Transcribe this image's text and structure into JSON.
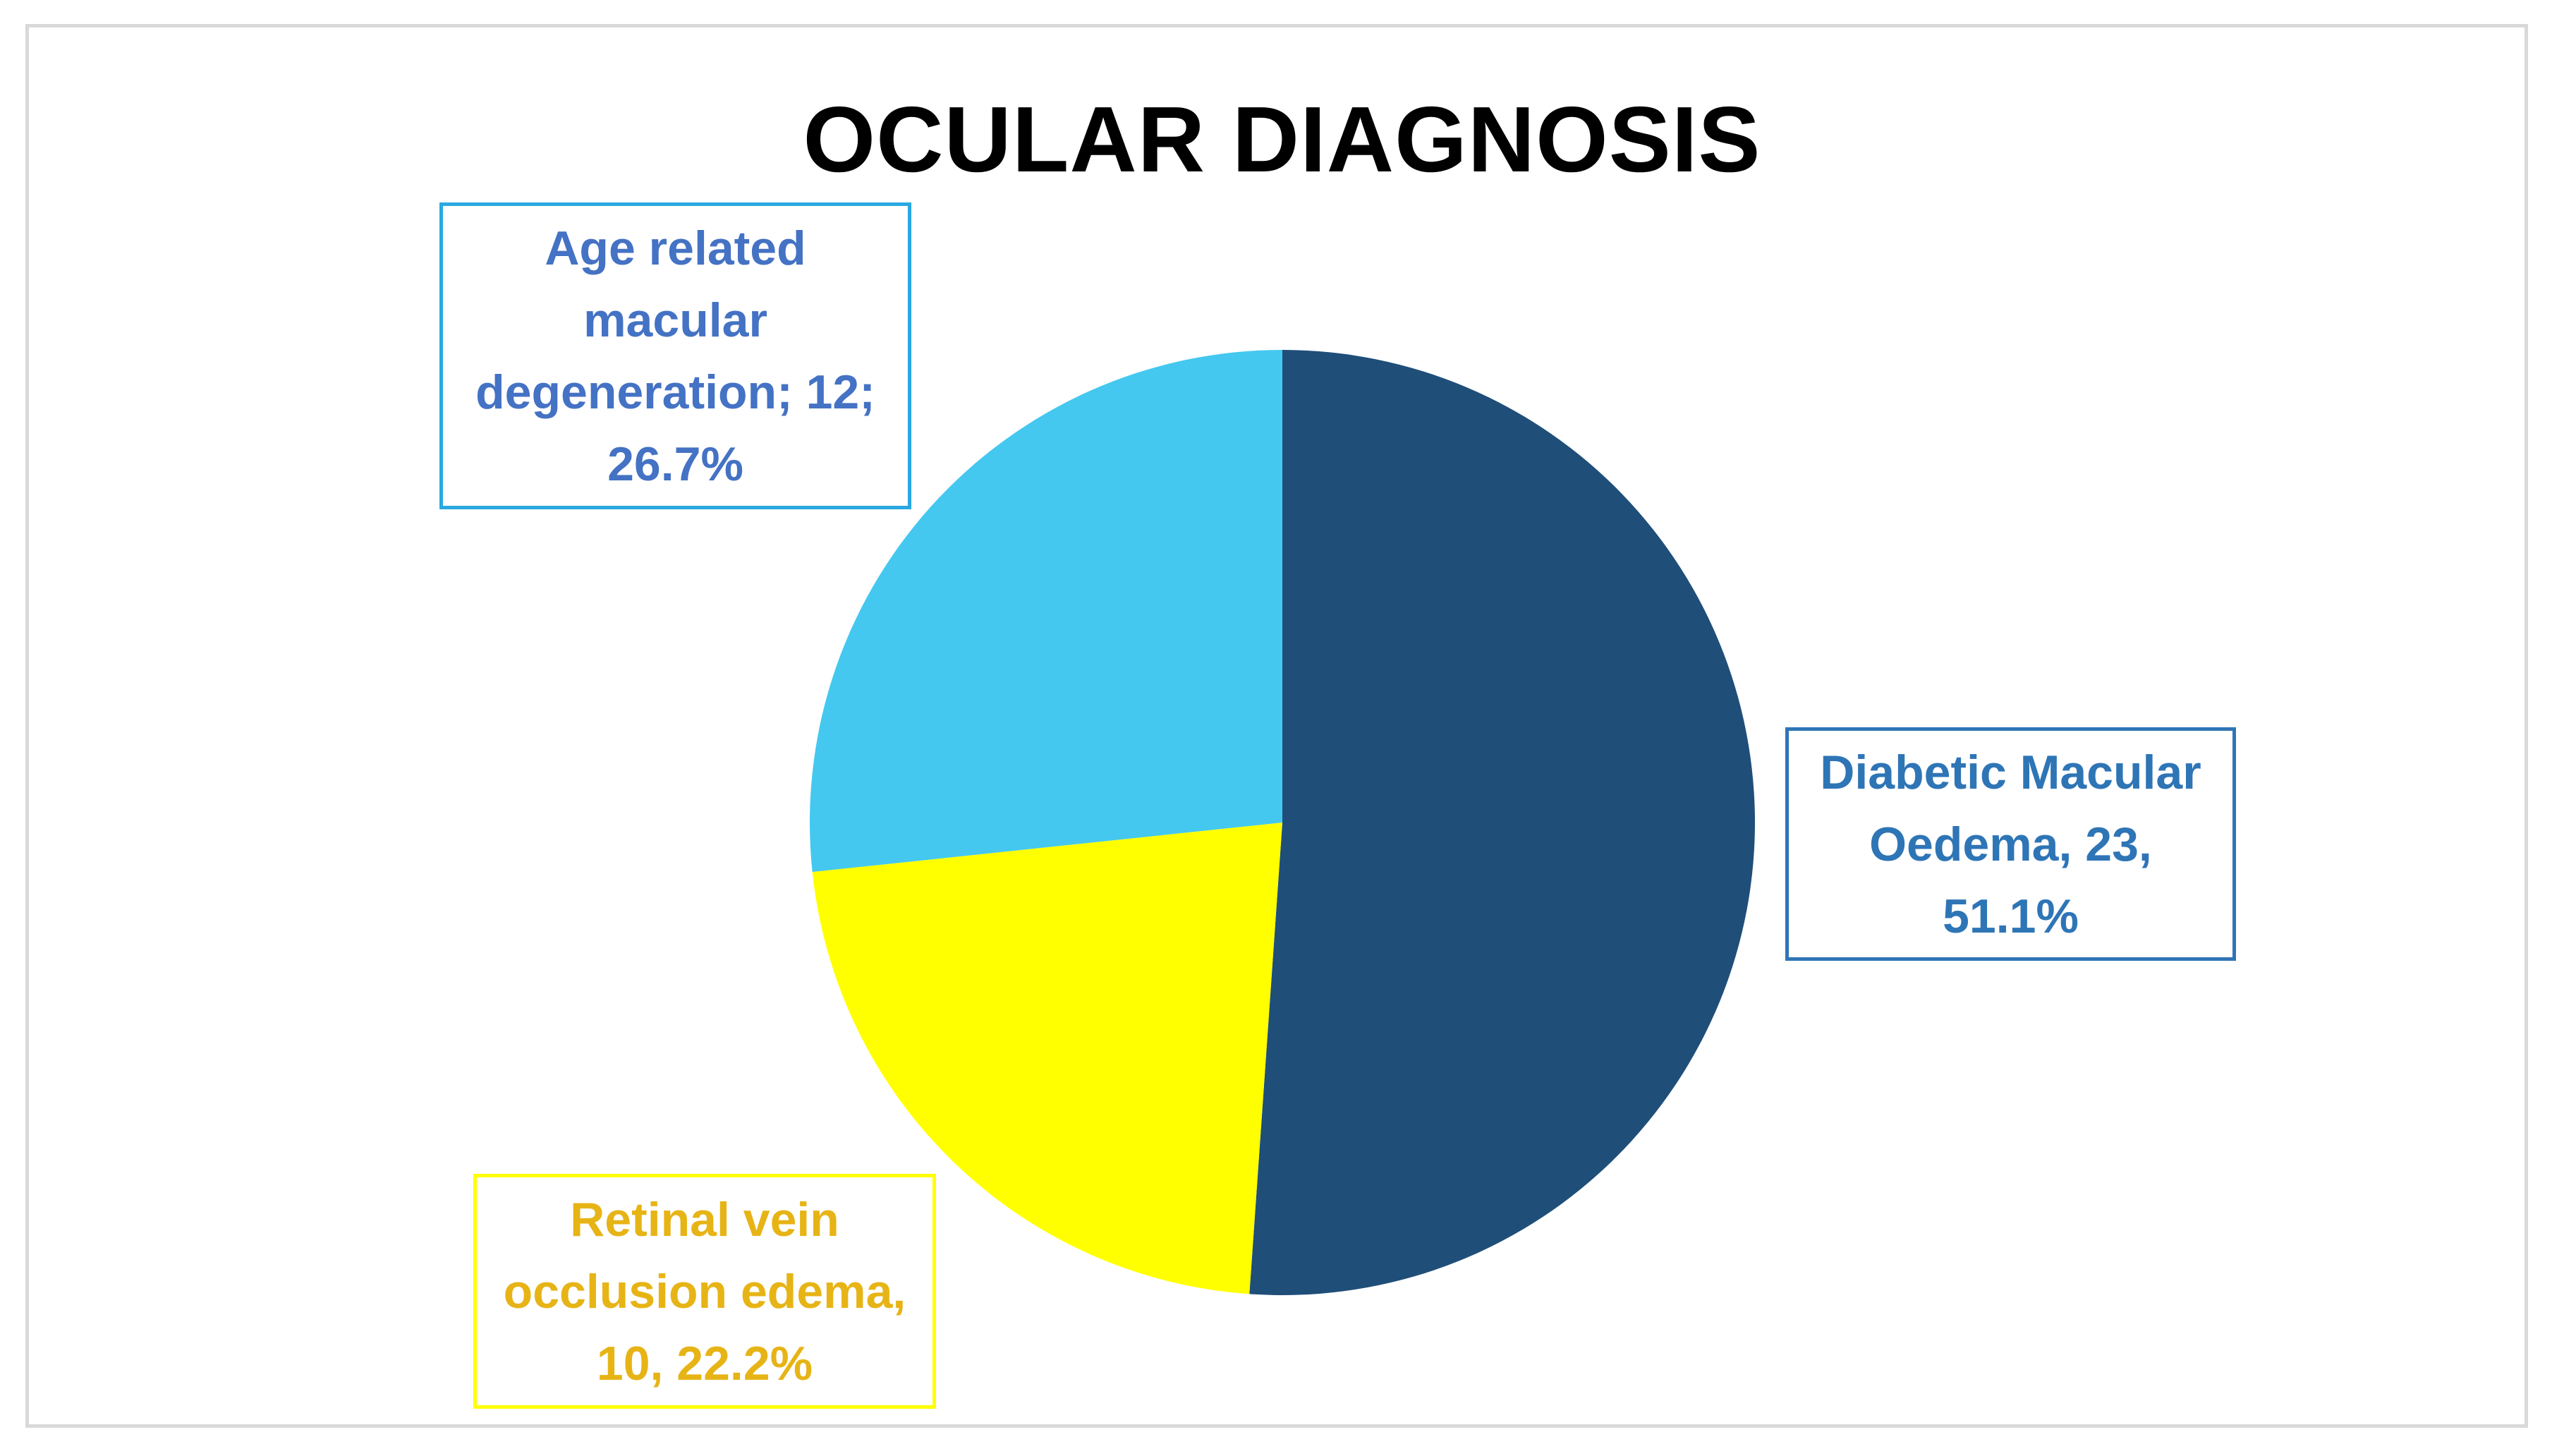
{
  "chart_data": {
    "type": "pie",
    "title": "OCULAR DIAGNOSIS",
    "slices": [
      {
        "name": "Diabetic Macular Oedema",
        "value": 23,
        "percent": 51.1,
        "color": "#1f4e79",
        "label_text": "Diabetic Macular Oedema, 23, 51.1%"
      },
      {
        "name": "Retinal vein occlusion edema",
        "value": 10,
        "percent": 22.2,
        "color": "#ffff00",
        "label_text": "Retinal vein occlusion edema, 10, 22.2%"
      },
      {
        "name": "Age related macular degeneration",
        "value": 12,
        "percent": 26.7,
        "color": "#44c8ef",
        "label_text": "Age related macular degeneration; 12; 26.7%"
      }
    ]
  },
  "colors": {
    "frame_border": "#d9d9d9",
    "title": "#000000"
  }
}
